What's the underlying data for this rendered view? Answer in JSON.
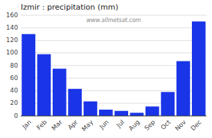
{
  "chart_data": {
    "type": "bar",
    "title": "Izmir : precipitation (mm)",
    "categories": [
      "Jan",
      "Feb",
      "Mar",
      "Apr",
      "May",
      "Jun",
      "Jul",
      "Aug",
      "Sep",
      "Oct",
      "Nov",
      "Dec"
    ],
    "values": [
      130,
      98,
      75,
      43,
      23,
      10,
      8,
      5,
      15,
      38,
      87,
      150
    ],
    "color": "#1a35e8",
    "ylim": [
      0,
      160
    ],
    "yticks": [
      0,
      20,
      40,
      60,
      80,
      100,
      120,
      140,
      160
    ],
    "grid": true,
    "annotations": [
      "www.allmetsat.com"
    ]
  }
}
